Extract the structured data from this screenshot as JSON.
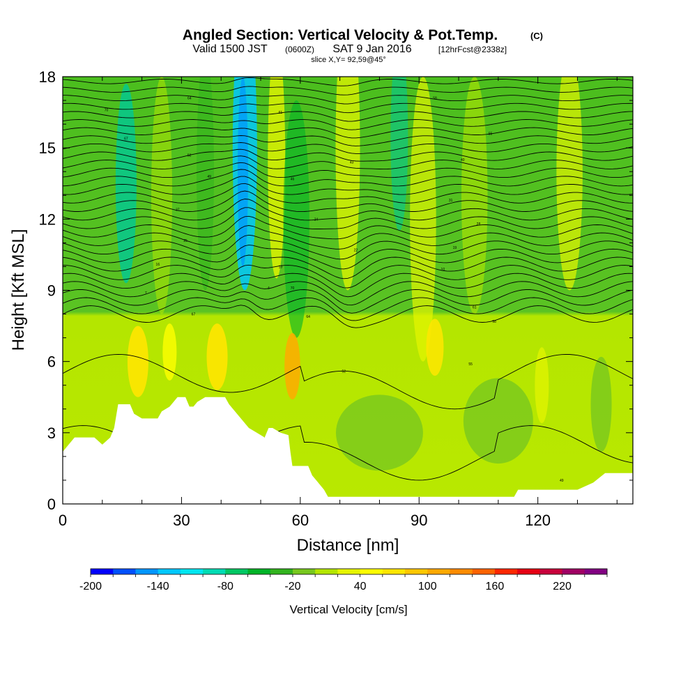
{
  "header": {
    "title": "Angled Section: Vertical Velocity & Pot.Temp.",
    "title_unit": "(C)",
    "valid_prefix": "Valid 1500 JST",
    "valid_zulu": "(0600Z)",
    "valid_date": "SAT 9 Jan 2016",
    "forecast": "[12hrFcst@2338z]",
    "slice": "slice X,Y= 92,59@45°"
  },
  "chart_data": {
    "type": "heatmap",
    "xlabel": "Distance [nm]",
    "ylabel": "Height [Kft MSL]",
    "xlim": [
      0,
      144
    ],
    "ylim": [
      0,
      18
    ],
    "xticks": [
      "0",
      "30",
      "60",
      "90",
      "120"
    ],
    "yticks": [
      "0",
      "3",
      "6",
      "9",
      "12",
      "15",
      "18"
    ],
    "colorbar": {
      "label": "Vertical Velocity [cm/s]",
      "range": [
        -200,
        260
      ],
      "step": 20,
      "tick_labels": [
        "-200",
        "-140",
        "-80",
        "-20",
        "40",
        "100",
        "160",
        "220"
      ],
      "colors": [
        "#0000ff",
        "#0050ff",
        "#0096ff",
        "#00c8ff",
        "#00e6f0",
        "#00dcb4",
        "#00c864",
        "#00b428",
        "#32b41e",
        "#78c81e",
        "#b4e600",
        "#e6f500",
        "#ffff00",
        "#ffe600",
        "#ffc800",
        "#ffaa00",
        "#ff8c00",
        "#ff6400",
        "#ff2800",
        "#e60014",
        "#c8003c",
        "#a00064",
        "#820082"
      ]
    },
    "terrain_height_kft": [
      [
        0,
        2.2
      ],
      [
        3,
        2.8
      ],
      [
        8,
        2.8
      ],
      [
        10,
        2.5
      ],
      [
        12,
        2.8
      ],
      [
        13,
        3.2
      ],
      [
        14,
        4.2
      ],
      [
        17,
        4.2
      ],
      [
        18,
        3.8
      ],
      [
        20,
        3.6
      ],
      [
        24,
        3.6
      ],
      [
        25,
        3.9
      ],
      [
        27,
        4.1
      ],
      [
        29,
        4.5
      ],
      [
        31,
        4.5
      ],
      [
        32,
        4.1
      ],
      [
        33,
        4.1
      ],
      [
        34,
        4.3
      ],
      [
        36,
        4.5
      ],
      [
        41,
        4.5
      ],
      [
        42,
        4.2
      ],
      [
        45,
        3.6
      ],
      [
        47,
        3.2
      ],
      [
        49,
        3.0
      ],
      [
        51,
        2.8
      ],
      [
        52,
        3.2
      ],
      [
        53,
        3.2
      ],
      [
        55,
        3.0
      ],
      [
        57,
        2.9
      ],
      [
        57.5,
        2.2
      ],
      [
        58,
        1.6
      ],
      [
        62,
        1.6
      ],
      [
        63,
        1.2
      ],
      [
        64,
        1.0
      ],
      [
        66,
        0.6
      ],
      [
        67,
        0.3
      ],
      [
        114,
        0.3
      ],
      [
        115,
        0.6
      ],
      [
        130,
        0.6
      ],
      [
        134,
        0.9
      ],
      [
        137,
        1.3
      ],
      [
        144,
        1.3
      ]
    ],
    "isentrope_labels": [
      "70",
      "67",
      "64",
      "61",
      "58",
      "55",
      "52",
      "49",
      "46",
      "43",
      "40",
      "37",
      "34",
      "31",
      "28",
      "25",
      "22",
      "19",
      "16",
      "13",
      "10",
      "7",
      "4"
    ],
    "grid": false
  }
}
